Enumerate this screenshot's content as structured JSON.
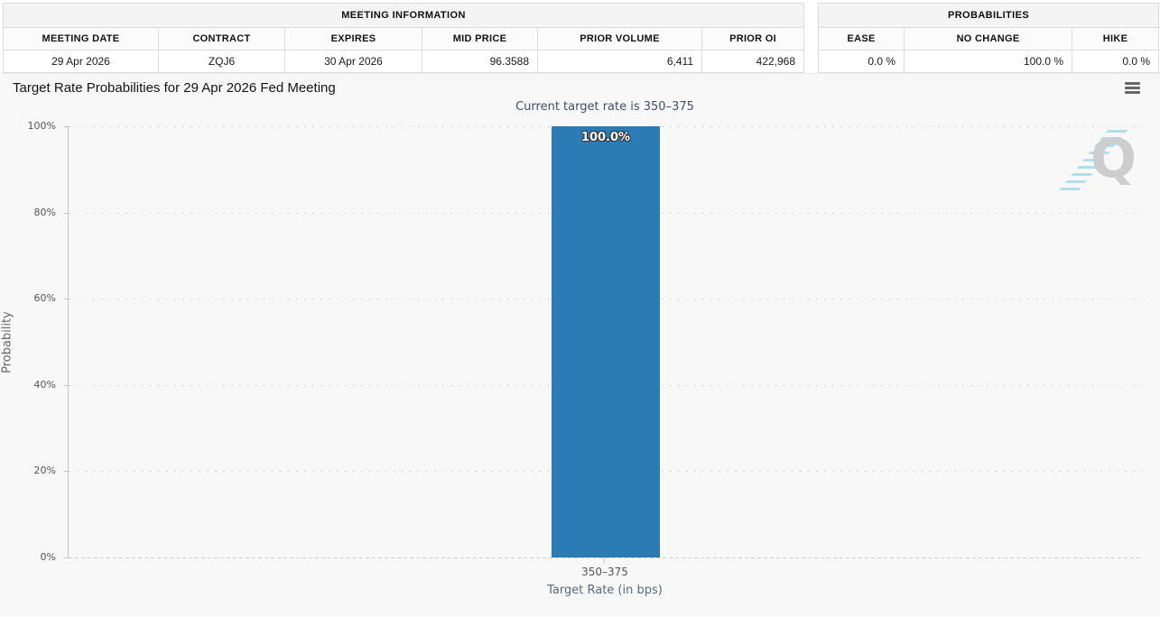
{
  "meeting_information": {
    "title": "MEETING INFORMATION",
    "columns": [
      "MEETING DATE",
      "CONTRACT",
      "EXPIRES",
      "MID PRICE",
      "PRIOR VOLUME",
      "PRIOR OI"
    ],
    "row": {
      "meeting_date": "29 Apr 2026",
      "contract": "ZQJ6",
      "expires": "30 Apr 2026",
      "mid_price": "96.3588",
      "prior_volume": "6,411",
      "prior_oi": "422,968"
    }
  },
  "probabilities_table": {
    "title": "PROBABILITIES",
    "columns": [
      "EASE",
      "NO CHANGE",
      "HIKE"
    ],
    "row": {
      "ease": "0.0 %",
      "no_change": "100.0 %",
      "hike": "0.0 %"
    }
  },
  "chart": {
    "title": "Target Rate Probabilities for 29 Apr 2026 Fed Meeting",
    "subtitle": "Current target rate is 350–375",
    "watermark_letter": "Q",
    "menu_icon": "hamburger-icon"
  },
  "chart_data": {
    "type": "bar",
    "title": "Target Rate Probabilities for 29 Apr 2026 Fed Meeting",
    "subtitle": "Current target rate is 350–375",
    "categories": [
      "350–375"
    ],
    "values": [
      100.0
    ],
    "bar_labels": [
      "100.0%"
    ],
    "xlabel": "Target Rate (in bps)",
    "ylabel": "Probability",
    "ylim": [
      0,
      100
    ],
    "yticks": [
      "0%",
      "20%",
      "40%",
      "60%",
      "80%",
      "100%"
    ],
    "grid": "dotted horizontal gridlines every 20%",
    "legend": "none",
    "bar_color": "#2b7cb5"
  },
  "colors": {
    "bar": "#2b7cb5",
    "chart_background": "#f8f8f8",
    "subtitle_text": "#3f5168",
    "watermark_gray": "#c9c9c9",
    "watermark_cyan": "#a9dcec"
  }
}
